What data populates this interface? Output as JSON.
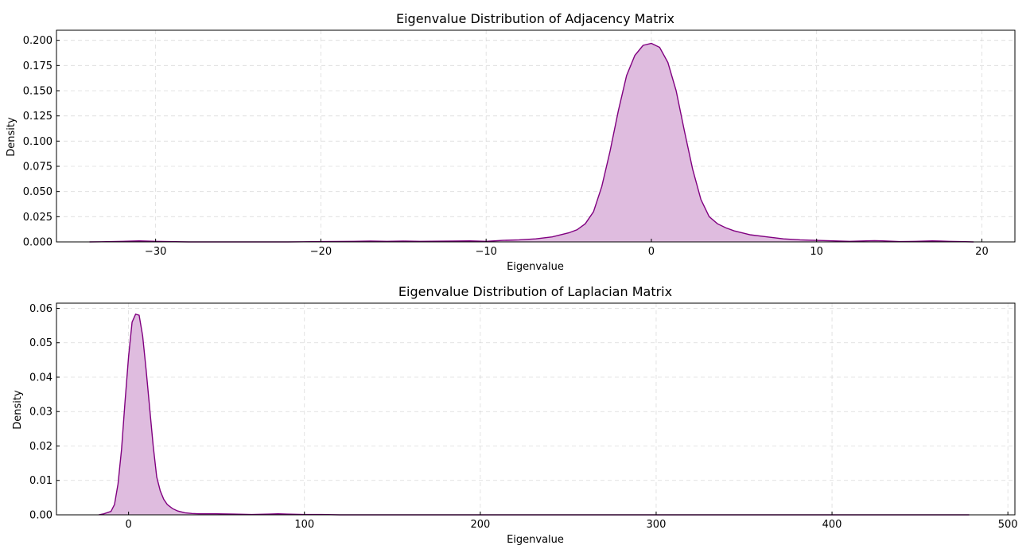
{
  "chart_data": [
    {
      "type": "area",
      "title": "Eigenvalue Distribution of Adjacency Matrix",
      "xlabel": "Eigenvalue",
      "ylabel": "Density",
      "xlim": [
        -36,
        22
      ],
      "ylim": [
        0,
        0.21
      ],
      "xticks": [
        -30,
        -20,
        -10,
        0,
        10,
        20
      ],
      "xtick_labels": [
        "−30",
        "−20",
        "−10",
        "0",
        "10",
        "20"
      ],
      "yticks": [
        0,
        0.025,
        0.05,
        0.075,
        0.1,
        0.125,
        0.15,
        0.175,
        0.2
      ],
      "ytick_labels": [
        "0.000",
        "0.025",
        "0.050",
        "0.075",
        "0.100",
        "0.125",
        "0.150",
        "0.175",
        "0.200"
      ],
      "grid": true,
      "line_color": "#800080",
      "fill_color": "#dfbcdf",
      "x": [
        -34,
        -32,
        -31,
        -30,
        -28,
        -26,
        -22,
        -20,
        -18,
        -17,
        -16,
        -15,
        -14,
        -12,
        -11,
        -10,
        -9,
        -8,
        -7,
        -6,
        -5,
        -4.5,
        -4,
        -3.5,
        -3,
        -2.5,
        -2,
        -1.5,
        -1,
        -0.5,
        0,
        0.5,
        1,
        1.5,
        2,
        2.5,
        3,
        3.5,
        4,
        4.5,
        5,
        6,
        7,
        8,
        9,
        10,
        11,
        12,
        13,
        13.5,
        14,
        15,
        16,
        17,
        17.5,
        18,
        19,
        19.5
      ],
      "y": [
        0,
        0.0005,
        0.001,
        0.0005,
        0,
        0,
        0,
        0.0003,
        0.0005,
        0.0008,
        0.0005,
        0.0008,
        0.0005,
        0.0008,
        0.001,
        0.0005,
        0.0015,
        0.002,
        0.003,
        0.005,
        0.009,
        0.012,
        0.018,
        0.03,
        0.055,
        0.09,
        0.13,
        0.165,
        0.185,
        0.195,
        0.197,
        0.193,
        0.178,
        0.15,
        0.11,
        0.072,
        0.042,
        0.025,
        0.018,
        0.014,
        0.011,
        0.007,
        0.005,
        0.003,
        0.002,
        0.0015,
        0.001,
        0.0005,
        0.001,
        0.0012,
        0.001,
        0.0003,
        0.0005,
        0.001,
        0.0008,
        0.0005,
        0.0002,
        0
      ]
    },
    {
      "type": "area",
      "title": "Eigenvalue Distribution of Laplacian Matrix",
      "xlabel": "Eigenvalue",
      "ylabel": "Density",
      "xlim": [
        -41,
        504
      ],
      "ylim": [
        0,
        0.0615
      ],
      "xticks": [
        0,
        100,
        200,
        300,
        400,
        500
      ],
      "xtick_labels": [
        "0",
        "100",
        "200",
        "300",
        "400",
        "500"
      ],
      "yticks": [
        0,
        0.01,
        0.02,
        0.03,
        0.04,
        0.05,
        0.06
      ],
      "ytick_labels": [
        "0.00",
        "0.01",
        "0.02",
        "0.03",
        "0.04",
        "0.05",
        "0.06"
      ],
      "grid": true,
      "line_color": "#800080",
      "fill_color": "#dfbcdf",
      "x": [
        -17,
        -14,
        -10,
        -8,
        -6,
        -4,
        -2,
        0,
        2,
        4,
        6,
        8,
        10,
        12,
        14,
        16,
        18,
        20,
        22,
        25,
        28,
        32,
        36,
        40,
        50,
        60,
        70,
        80,
        85,
        90,
        100,
        110,
        120,
        150,
        200,
        300,
        400,
        478
      ],
      "y": [
        0,
        0.0003,
        0.001,
        0.003,
        0.009,
        0.019,
        0.033,
        0.046,
        0.056,
        0.0583,
        0.058,
        0.052,
        0.042,
        0.031,
        0.02,
        0.011,
        0.007,
        0.0045,
        0.003,
        0.0018,
        0.0011,
        0.0006,
        0.0004,
        0.0003,
        0.0003,
        0.0002,
        0.0001,
        0.0002,
        0.0003,
        0.0002,
        0.0001,
        0.0001,
        0,
        0,
        0,
        0,
        0,
        0
      ]
    }
  ]
}
